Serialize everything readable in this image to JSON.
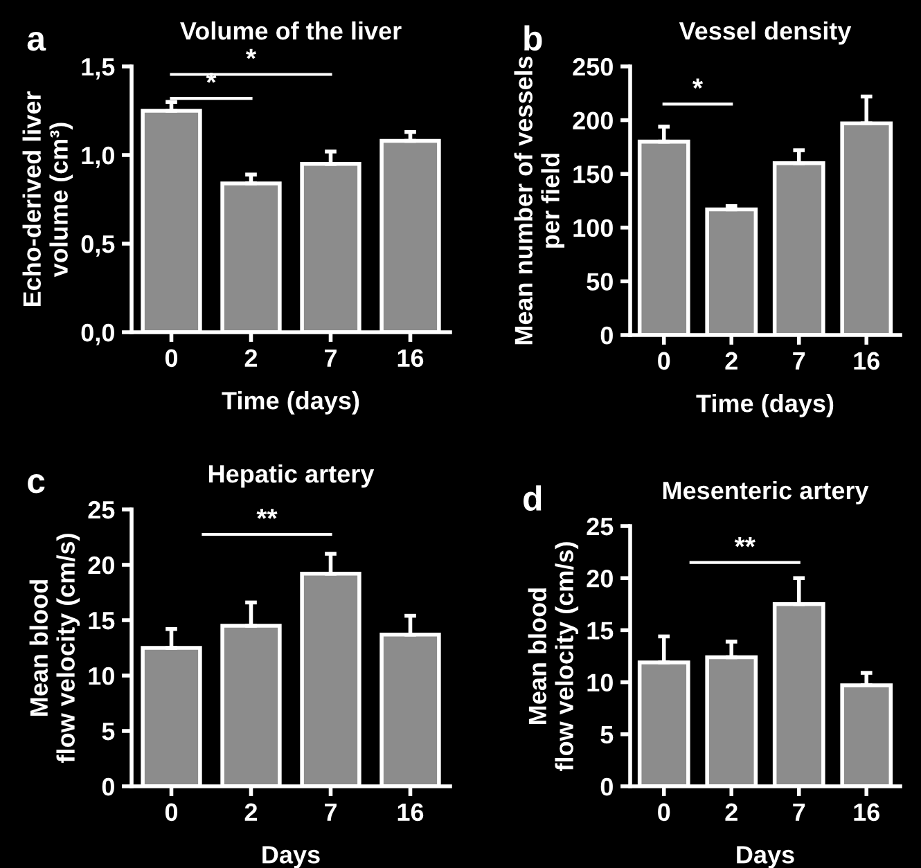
{
  "chart_data": [
    {
      "type": "bar",
      "title": "Volume of the liver",
      "xlabel": "Time (days)",
      "ylabel": "Echo-derived liver\nvolume (cm³)",
      "categories": [
        "0",
        "2",
        "7",
        "16"
      ],
      "values": [
        1.25,
        0.84,
        0.95,
        1.08
      ],
      "errors": [
        [
          1.25,
          1.3
        ],
        [
          0.84,
          0.89
        ],
        [
          0.95,
          1.02
        ],
        [
          1.08,
          1.13
        ]
      ],
      "color": "#8c8c8c",
      "ylim": [
        0,
        1.5
      ],
      "yticks": [
        {
          "value": 0,
          "label": "0,0"
        },
        {
          "value": 0.5,
          "label": "0,5"
        },
        {
          "value": 1,
          "label": "1,0"
        },
        {
          "value": 1.5,
          "label": "1,5"
        }
      ],
      "annotations": [
        "a",
        "*",
        "*"
      ]
    },
    {
      "type": "bar",
      "title": "Vessel density",
      "xlabel": "Time (days)",
      "ylabel": "Mean number of vessels\nper field",
      "categories": [
        "0",
        "2",
        "7",
        "16"
      ],
      "values": [
        180,
        117,
        160,
        197
      ],
      "errors": [
        [
          180,
          194
        ],
        [
          117,
          120
        ],
        [
          160,
          172
        ],
        [
          197,
          222
        ]
      ],
      "color": "#8c8c8c",
      "ylim": [
        0,
        250
      ],
      "yticks": [
        0,
        50,
        100,
        150,
        200,
        250
      ],
      "annotations": [
        "b",
        "*"
      ]
    },
    {
      "type": "bar",
      "title": "Hepatic artery",
      "xlabel": "Days",
      "ylabel": "Mean blood\nflow velocity (cm/s)",
      "categories": [
        "0",
        "2",
        "7",
        "16"
      ],
      "values": [
        12.5,
        14.5,
        19.2,
        13.7
      ],
      "errors": [
        [
          12.5,
          14.2
        ],
        [
          14.5,
          16.6
        ],
        [
          19.2,
          21.0
        ],
        [
          13.7,
          15.4
        ]
      ],
      "color": "#8c8c8c",
      "ylim": [
        0,
        25
      ],
      "yticks": [
        0,
        5,
        10,
        15,
        20,
        25
      ],
      "annotations": [
        "c",
        "**"
      ]
    },
    {
      "type": "bar",
      "title": "Mesenteric artery",
      "xlabel": "Days",
      "ylabel": "Mean blood\nflow velocity (cm/s)",
      "categories": [
        "0",
        "2",
        "7",
        "16"
      ],
      "values": [
        11.9,
        12.4,
        17.5,
        9.7
      ],
      "errors": [
        [
          11.9,
          14.4
        ],
        [
          12.4,
          13.9
        ],
        [
          17.5,
          20.0
        ],
        [
          9.7,
          10.9
        ]
      ],
      "color": "#8c8c8c",
      "ylim": [
        0,
        25
      ],
      "yticks": [
        0,
        5,
        10,
        15,
        20,
        25
      ],
      "annotations": [
        "d",
        "**"
      ]
    }
  ]
}
